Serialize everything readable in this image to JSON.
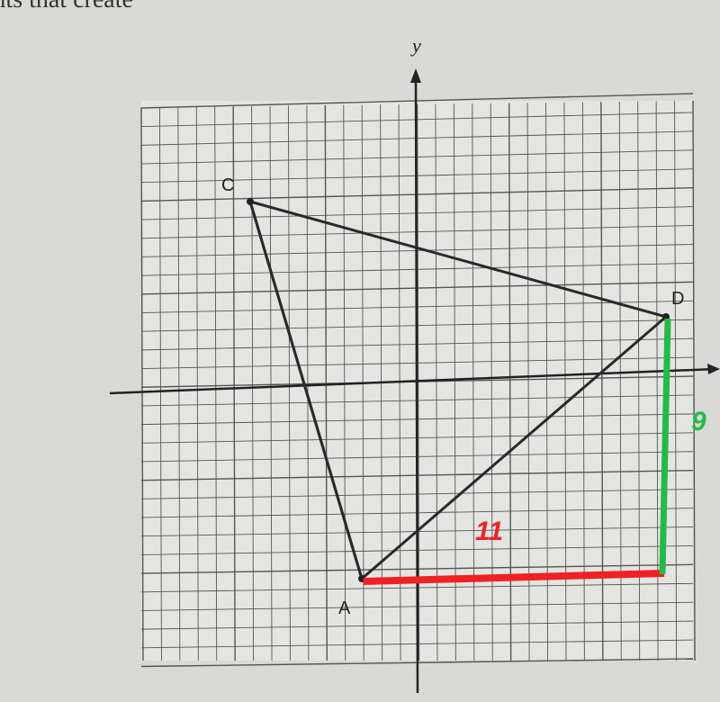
{
  "header": {
    "text": "ents that create"
  },
  "axes": {
    "y_label": "y"
  },
  "points": [
    {
      "label": "C"
    },
    {
      "label": "D"
    },
    {
      "label": "A"
    }
  ],
  "annotations": [
    {
      "text": "11",
      "color": "#ee2222"
    },
    {
      "text": "9",
      "color": "#22bb44"
    }
  ]
}
